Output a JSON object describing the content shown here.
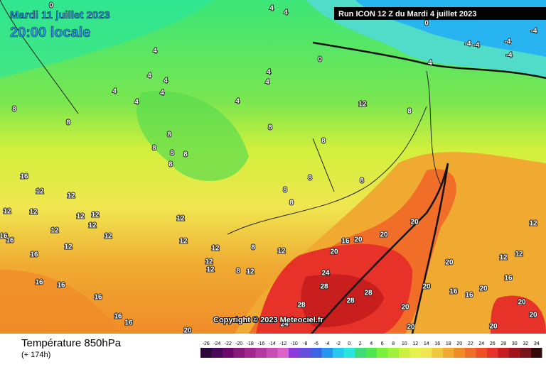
{
  "header": {
    "date": "Mardi 11 juillet 2023",
    "time": "20:00 locale",
    "run": "Run ICON 12 Z du Mardi 4 juillet 2023"
  },
  "copyright": "Copyright © 2023 Meteociel.fr",
  "footer": {
    "title": "Température 850hPa",
    "lead": "(+ 174h)"
  },
  "contour_labels": [
    4,
    4,
    0,
    0,
    -4,
    -4,
    -4,
    -4,
    -4,
    0,
    4,
    4,
    4,
    4,
    4,
    4,
    4,
    4,
    4,
    4,
    8,
    8,
    8,
    12,
    8,
    8,
    8,
    8,
    8,
    8,
    8,
    8,
    8,
    8,
    8,
    16,
    12,
    12,
    12,
    12,
    12,
    12,
    12,
    12,
    12,
    12,
    16,
    16,
    12,
    12,
    12,
    16,
    12,
    8,
    16,
    20,
    20,
    20,
    12,
    20,
    24,
    28,
    28,
    28,
    28,
    20,
    20,
    16,
    16,
    20,
    16,
    12,
    12,
    20,
    20,
    20,
    16,
    16,
    16,
    16,
    16,
    20,
    12,
    12,
    12,
    8,
    20,
    20,
    24
  ],
  "colorbar": {
    "ticks": [
      -26,
      -24,
      -22,
      -20,
      -18,
      -16,
      -14,
      -12,
      -10,
      -8,
      -6,
      -4,
      -2,
      0,
      2,
      4,
      6,
      8,
      10,
      12,
      14,
      16,
      18,
      20,
      22,
      24,
      26,
      28,
      30,
      32,
      34
    ],
    "colors": [
      "#2a0a3a",
      "#4a0a5a",
      "#6a0a6a",
      "#8a1a7a",
      "#a0288a",
      "#b43ca0",
      "#c850b4",
      "#dc64c8",
      "#8c3cdc",
      "#6450dc",
      "#3c64e6",
      "#2896f0",
      "#28c8f0",
      "#28e6dc",
      "#3cdc78",
      "#50e650",
      "#78f03c",
      "#a0f03c",
      "#c8f03c",
      "#e6f050",
      "#f0e650",
      "#f0c83c",
      "#f0aa32",
      "#f08c28",
      "#f06e28",
      "#f05028",
      "#e63228",
      "#c81e1e",
      "#a0141e",
      "#78141e",
      "#320a0a"
    ]
  }
}
